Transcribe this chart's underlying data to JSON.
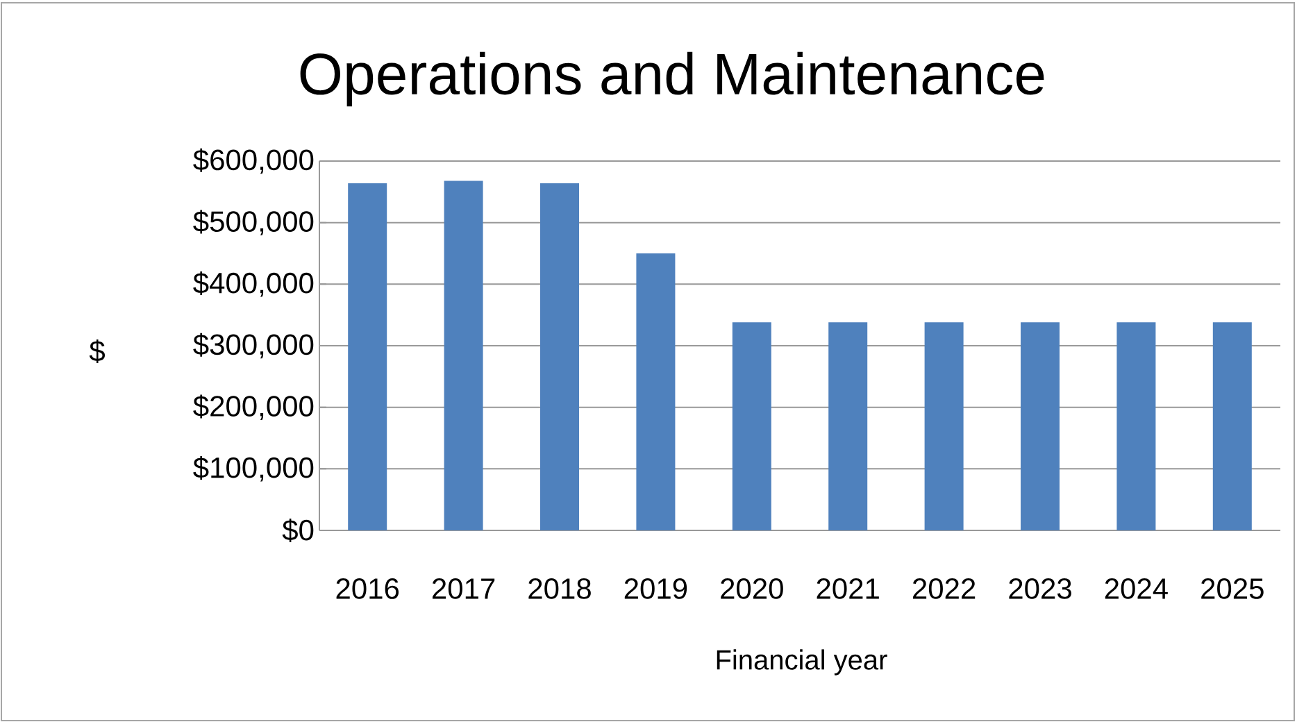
{
  "chart_data": {
    "type": "bar",
    "title": "Operations and Maintenance",
    "xlabel": "Financial year",
    "ylabel": "$",
    "categories": [
      "2016",
      "2017",
      "2018",
      "2019",
      "2020",
      "2021",
      "2022",
      "2023",
      "2024",
      "2025"
    ],
    "values": [
      564000,
      568000,
      564000,
      450000,
      338000,
      338000,
      338000,
      338000,
      338000,
      338000
    ],
    "color": "#4f81bd",
    "ylim": [
      0,
      600000
    ],
    "yticks": [
      {
        "value": 0,
        "label": "$0"
      },
      {
        "value": 100000,
        "label": "$100,000"
      },
      {
        "value": 200000,
        "label": "$200,000"
      },
      {
        "value": 300000,
        "label": "$300,000"
      },
      {
        "value": 400000,
        "label": "$400,000"
      },
      {
        "value": 500000,
        "label": "$500,000"
      },
      {
        "value": 600000,
        "label": "$600,000"
      }
    ],
    "grid": "y"
  }
}
